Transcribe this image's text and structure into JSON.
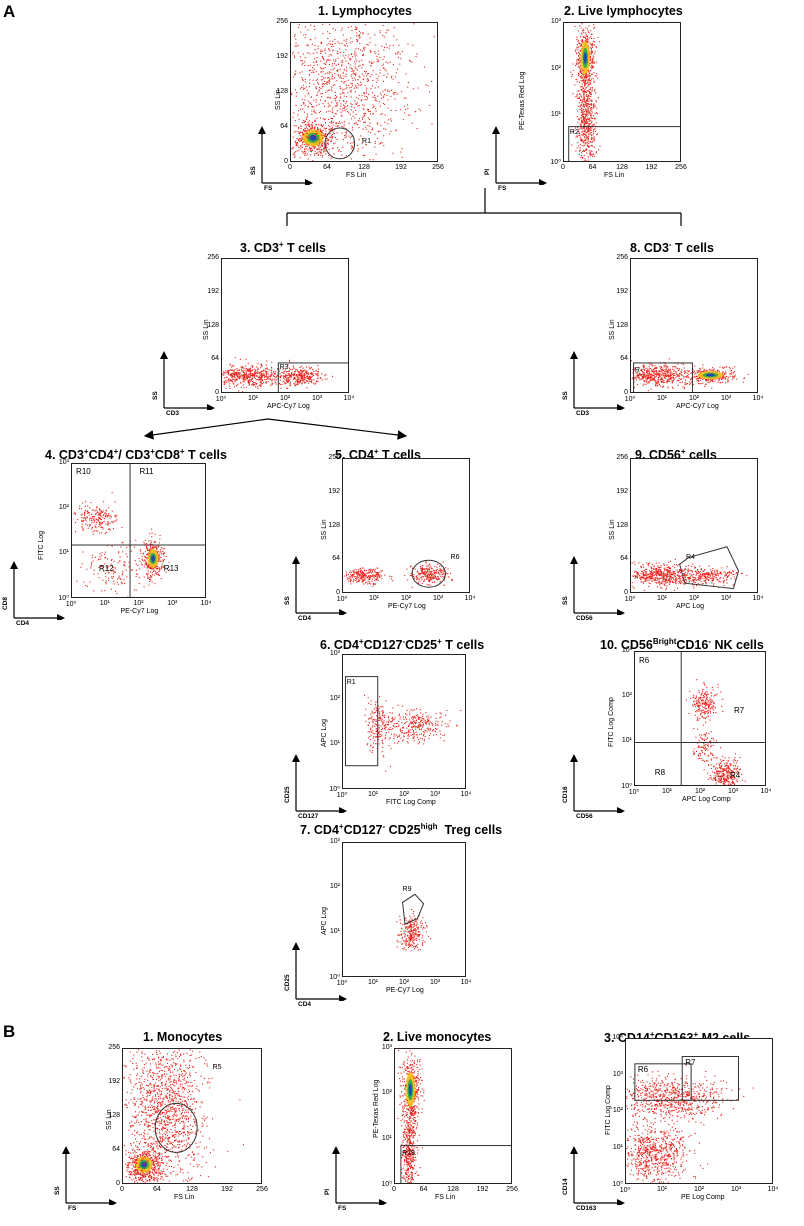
{
  "panel_a": {
    "letter": "A"
  },
  "panel_b": {
    "letter": "B"
  },
  "plots": {
    "a1": {
      "title": "1. Lymphocytes",
      "xlabel": "FS Lin",
      "ylabel": "SS Lin",
      "mini_x": "FS",
      "mini_y": "SS",
      "gate": "R1",
      "xticks": [
        "0",
        "64",
        "128",
        "192",
        "256"
      ],
      "yticks": [
        "256",
        "192",
        "128",
        "64",
        "0"
      ]
    },
    "a2": {
      "title": "2. Live lymphocytes",
      "xlabel": "FS Lin",
      "ylabel": "PE-Texas Red Log",
      "mini_x": "FS",
      "mini_y": "PI",
      "gate": "R2",
      "xticks": [
        "0",
        "64",
        "128",
        "192",
        "256"
      ],
      "yticks": [
        "10³",
        "10²",
        "10¹",
        "10⁰"
      ]
    },
    "a3": {
      "title_main": "3. CD3",
      "title_sup": "+",
      "title_end": " T cells",
      "xlabel": "APC-Cy7 Log",
      "ylabel": "SS Lin",
      "mini_x": "CD3",
      "mini_y": "SS",
      "gate": "R3",
      "xticks": [
        "10⁰",
        "10¹",
        "10²",
        "10³",
        "10⁴"
      ],
      "yticks": [
        "256",
        "192",
        "128",
        "64",
        "0"
      ]
    },
    "a4": {
      "title_html": "4. CD3<sup>+</sup>CD4<sup>+</sup>/ CD3<sup>+</sup>CD8<sup>+</sup> T cells",
      "xlabel": "PE-Cy7 Log",
      "ylabel": "FITC Log",
      "mini_x": "CD4",
      "mini_y": "CD8",
      "gates": [
        "R10",
        "R11",
        "R12",
        "R13"
      ],
      "xticks": [
        "10⁰",
        "10¹",
        "10²",
        "10³",
        "10⁴"
      ],
      "yticks": [
        "10³",
        "10²",
        "10¹",
        "10⁰"
      ]
    },
    "a5": {
      "title_html": "5. CD4<sup>+</sup> T cells",
      "xlabel": "PE-Cy7 Log",
      "ylabel": "SS Lin",
      "mini_x": "CD4",
      "mini_y": "SS",
      "gate": "R6",
      "xticks": [
        "10⁰",
        "10¹",
        "10²",
        "10³",
        "10⁴"
      ],
      "yticks": [
        "256",
        "192",
        "128",
        "64",
        "0"
      ]
    },
    "a6": {
      "title_html": "6. CD4<sup>+</sup>CD127<sup>-</sup>CD25<sup>+</sup> T cells",
      "xlabel": "FITC Log Comp",
      "ylabel": "APC Log",
      "mini_x": "CD127",
      "mini_y": "CD25",
      "gate": "R1",
      "xticks": [
        "10⁰",
        "10¹",
        "10²",
        "10³",
        "10⁴"
      ],
      "yticks": [
        "10³",
        "10²",
        "10¹",
        "10⁰"
      ]
    },
    "a7": {
      "title_html": "7. CD4<sup>+</sup>CD127<sup>-</sup> CD25<sup>high</sup>&nbsp; Treg cells",
      "xlabel": "PE-Cy7 Log",
      "ylabel": "APC Log",
      "mini_x": "CD4",
      "mini_y": "CD25",
      "gate": "R9",
      "xticks": [
        "10⁰",
        "10¹",
        "10²",
        "10³",
        "10⁴"
      ],
      "yticks": [
        "10³",
        "10²",
        "10¹",
        "10⁰"
      ]
    },
    "a8": {
      "title_html": "8. CD3<sup>-</sup> T cells",
      "xlabel": "APC-Cy7 Log",
      "ylabel": "SS Lin",
      "mini_x": "CD3",
      "mini_y": "SS",
      "gate": "R",
      "xticks": [
        "10⁰",
        "10¹",
        "10²",
        "10³",
        "10⁴"
      ],
      "yticks": [
        "256",
        "192",
        "128",
        "64",
        "0"
      ]
    },
    "a9": {
      "title_html": "9. CD56<sup>+</sup> cells",
      "xlabel": "APC Log",
      "ylabel": "SS Lin",
      "mini_x": "CD56",
      "mini_y": "SS",
      "gate": "R4",
      "xticks": [
        "10⁰",
        "10¹",
        "10²",
        "10³",
        "10⁴"
      ],
      "yticks": [
        "256",
        "192",
        "128",
        "64",
        "0"
      ]
    },
    "a10": {
      "title_html": "10. CD56<sup>Bright</sup>CD16<sup>-</sup> NK cells",
      "xlabel": "APC Log Comp",
      "ylabel": "FITC Log Comp",
      "mini_x": "CD56",
      "mini_y": "CD16",
      "gates": [
        "R6",
        "R7",
        "R8",
        "R4"
      ],
      "xticks": [
        "10⁰",
        "10¹",
        "10²",
        "10³",
        "10⁴"
      ],
      "yticks": [
        "10³",
        "10²",
        "10¹",
        "10⁰"
      ]
    },
    "b1": {
      "title": "1. Monocytes",
      "xlabel": "FS Lin",
      "ylabel": "SS Lin",
      "mini_x": "FS",
      "mini_y": "SS",
      "gate": "R5",
      "xticks": [
        "0",
        "64",
        "128",
        "192",
        "256"
      ],
      "yticks": [
        "256",
        "192",
        "128",
        "64",
        "0"
      ]
    },
    "b2": {
      "title": "2. Live monocytes",
      "xlabel": "FS Lin",
      "ylabel": "PE-Texas Red Log",
      "mini_x": "FS",
      "mini_y": "PI",
      "gate": "R19",
      "xticks": [
        "0",
        "64",
        "128",
        "192",
        "256"
      ],
      "yticks": [
        "10³",
        "10²",
        "10¹",
        "10⁰"
      ]
    },
    "b3": {
      "title_html": "3. CD14<sup>+</sup>CD163<sup>+</sup> M2 cells",
      "xlabel": "PE Log Comp",
      "ylabel": "FITC Log Comp",
      "mini_x": "CD163",
      "mini_y": "CD14",
      "gates": [
        "R6",
        "R7"
      ],
      "xticks": [
        "10⁰",
        "10¹",
        "10²",
        "10³",
        "10⁴"
      ],
      "yticks": [
        "10⁴",
        "10³",
        "10²",
        "10¹",
        "10⁰"
      ]
    }
  },
  "colors": {
    "dots": "#e8231c",
    "dense_yellow": "#f5c21b",
    "dense_green": "#2fa84a",
    "dense_blue": "#1d3fb8"
  }
}
